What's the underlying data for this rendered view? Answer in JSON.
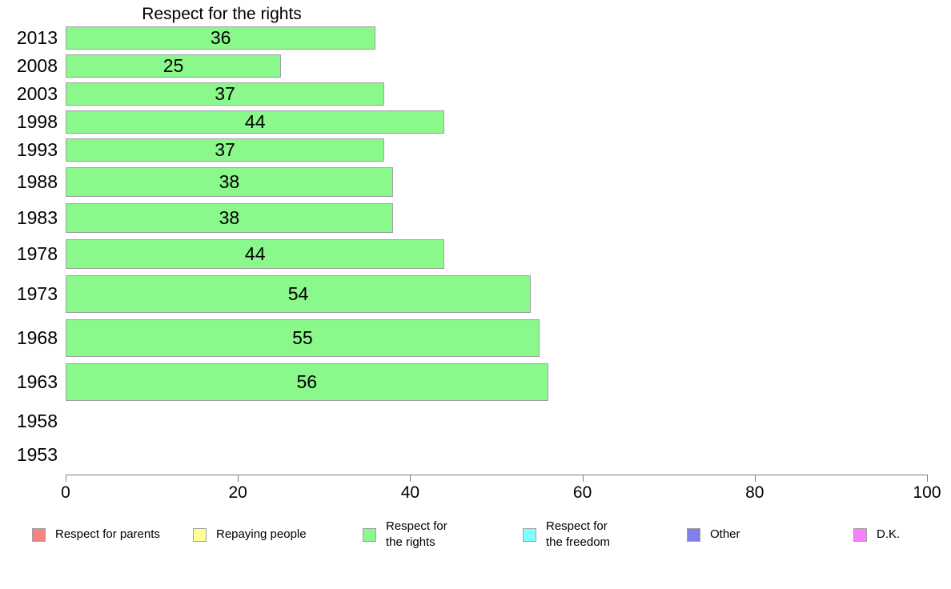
{
  "chart_data": {
    "type": "bar",
    "orientation": "horizontal",
    "title": "Respect for the rights",
    "categories": [
      "2013",
      "2008",
      "2003",
      "1998",
      "1993",
      "1988",
      "1983",
      "1978",
      "1973",
      "1968",
      "1963",
      "1958",
      "1953"
    ],
    "values": [
      36,
      25,
      37,
      44,
      37,
      38,
      38,
      44,
      54,
      55,
      56,
      null,
      null
    ],
    "xlabel": "",
    "ylabel": "",
    "xlim": [
      0,
      100
    ],
    "xticks": [
      0,
      20,
      40,
      60,
      80,
      100
    ],
    "grid": false,
    "bar_color": "#8AF88A",
    "bar_border_color": "#A0A0A0",
    "value_labels_shown": true,
    "legend_position": "bottom",
    "legend": [
      {
        "lines": [
          "Respect for parents"
        ],
        "color": "#F48484"
      },
      {
        "lines": [
          "Repaying people"
        ],
        "color": "#FFFF99"
      },
      {
        "lines": [
          "Respect for",
          "the rights"
        ],
        "color": "#8AF88A"
      },
      {
        "lines": [
          "Respect for",
          "the freedom"
        ],
        "color": "#80FFFF"
      },
      {
        "lines": [
          "Other"
        ],
        "color": "#8080E8"
      },
      {
        "lines": [
          "D.K."
        ],
        "color": "#FA80FA"
      }
    ]
  }
}
